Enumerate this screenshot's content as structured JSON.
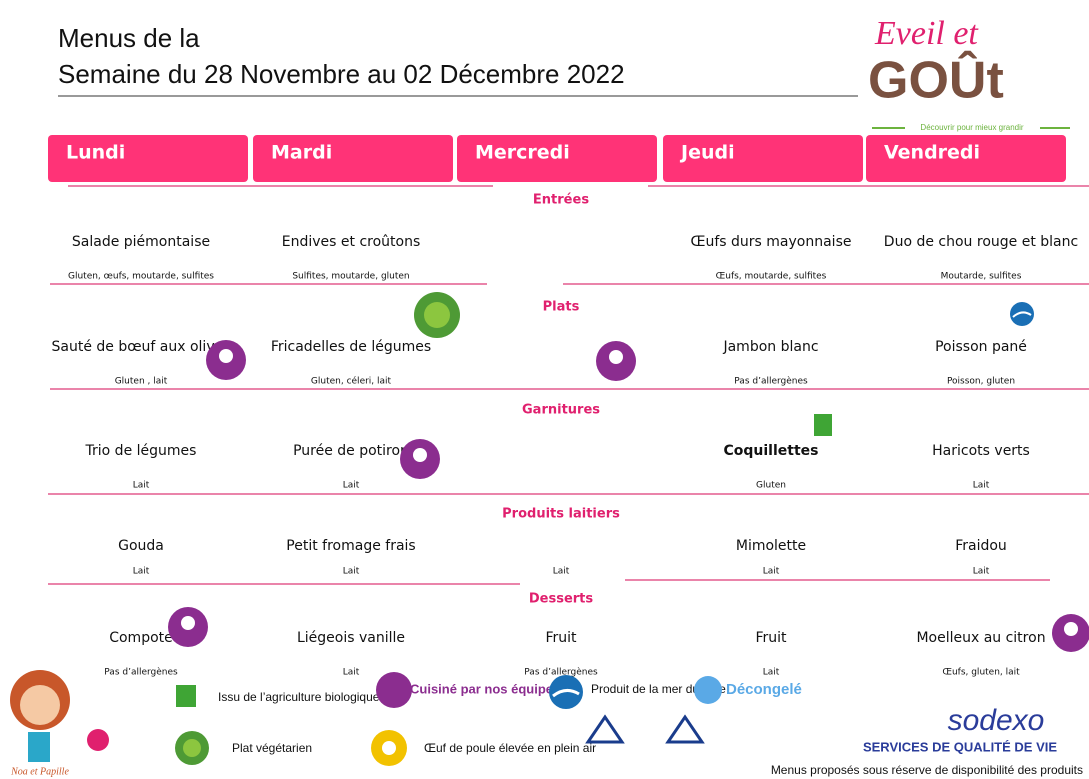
{
  "header": {
    "title_line1": "Menus de la",
    "title_line2": "Semaine du 28 Novembre au 02 Décembre 2022"
  },
  "logo": {
    "line1": "Eveil et",
    "line2": "GOÛt",
    "tagline": "Découvrir pour mieux grandir"
  },
  "days": [
    "Lundi",
    "Mardi",
    "Mercredi",
    "Jeudi",
    "Vendredi"
  ],
  "sections": [
    {
      "title": "Entrées",
      "items": [
        "Salade piémontaise",
        "Endives et croûtons",
        null,
        "Œufs durs mayonnaise",
        "Duo de chou rouge et blanc"
      ],
      "allergens": [
        "Gluten,  œufs, moutarde, sulfites",
        "Sulfites, moutarde, gluten",
        null,
        "Œufs, moutarde, sulfites",
        "Moutarde, sulfites"
      ]
    },
    {
      "title": "Plats",
      "items": [
        "Sauté de bœuf aux olives",
        "Fricadelles de légumes",
        null,
        "Jambon blanc",
        "Poisson pané"
      ],
      "allergens": [
        "Gluten , lait",
        "Gluten, céleri, lait",
        null,
        "Pas d’allergènes",
        "Poisson, gluten"
      ]
    },
    {
      "title": "Garnitures",
      "items": [
        "Trio de légumes",
        "Purée de potiron",
        null,
        "Coquillettes",
        "Haricots verts"
      ],
      "allergens": [
        "Lait",
        "Lait",
        null,
        "Gluten",
        "Lait"
      ]
    },
    {
      "title": "Produits laitiers",
      "items": [
        "Gouda",
        "Petit fromage frais",
        null,
        "Mimolette",
        "Fraidou"
      ],
      "allergens": [
        "Lait",
        "Lait",
        "Lait",
        "Lait",
        "Lait"
      ]
    },
    {
      "title": "Desserts",
      "items": [
        "Compote",
        "Liégeois vanille",
        "Fruit",
        "Fruit",
        "Moelleux au citron"
      ],
      "allergens": [
        "Pas d’allergènes",
        "Lait",
        "Pas d’allergènes",
        "Lait",
        "Œufs, gluten, lait"
      ]
    }
  ],
  "legend": {
    "organic": "Issu de l’agriculture biologique",
    "vegetarian": "Plat végétarien",
    "homemade": "Cuisiné par nos équipes",
    "egg": "Œuf de poule élevée en plein air",
    "seafood": "Produit de la mer durable",
    "frozen": "Décongelé"
  },
  "mascot": "Noa et Papille",
  "brand": {
    "name": "sodexo",
    "slogan": "SERVICES DE QUALITÉ DE VIE"
  },
  "footer": "Menus proposés sous réserve de disponibilité des produits"
}
